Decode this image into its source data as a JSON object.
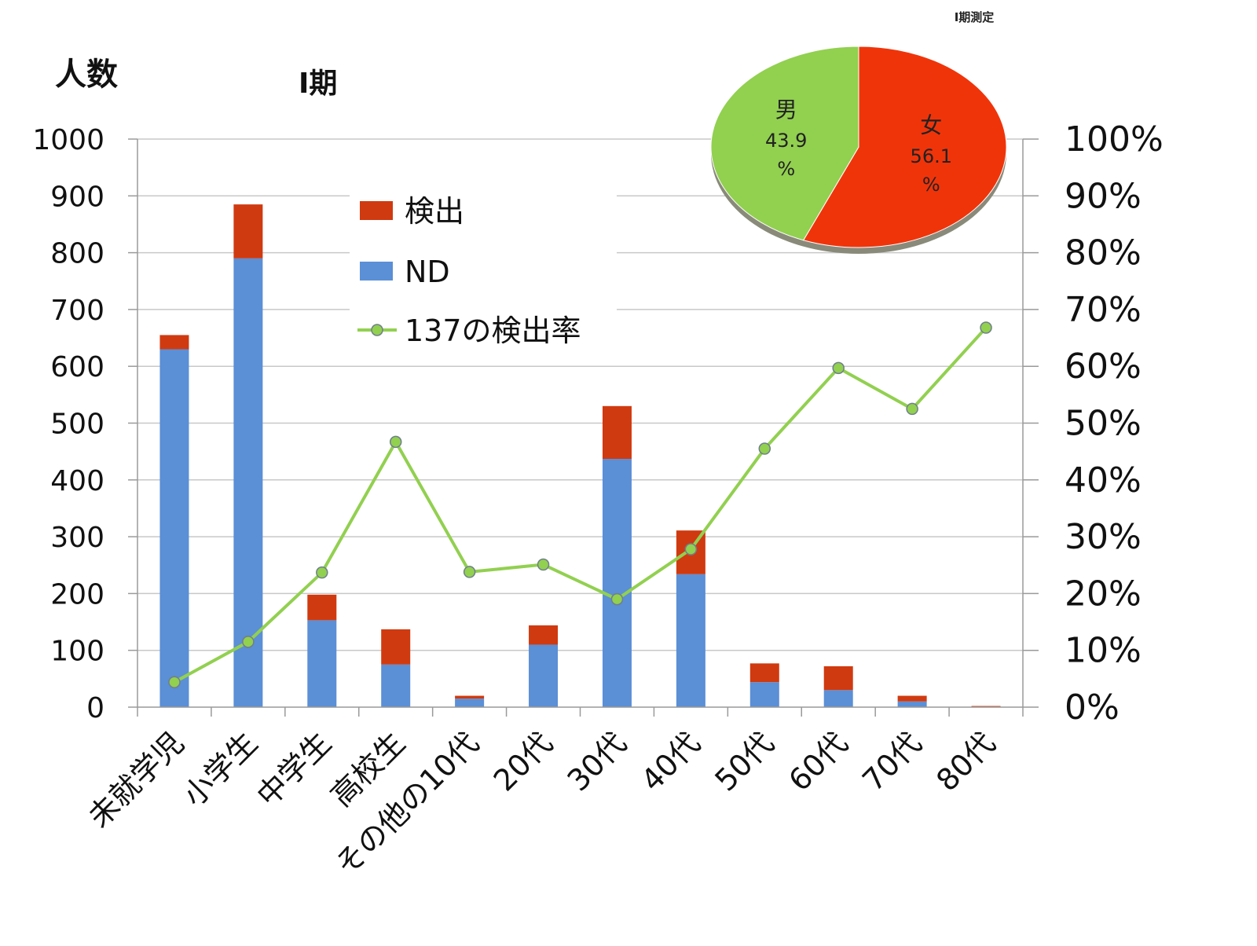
{
  "chart_data": [
    {
      "type": "bar",
      "subtitle": "Ⅰ期",
      "ylabel_left": "人数",
      "categories": [
        "未就学児",
        "小学生",
        "中学生",
        "高校生",
        "その他の10代",
        "20代",
        "30代",
        "40代",
        "50代",
        "60代",
        "70代",
        "80代"
      ],
      "stacked": true,
      "series": [
        {
          "name": "ND",
          "color": "#5b8fd6",
          "values": [
            630,
            790,
            153,
            75,
            15,
            110,
            437,
            234,
            44,
            30,
            10,
            0
          ]
        },
        {
          "name": "検出",
          "color": "#d03a10",
          "values": [
            25,
            95,
            45,
            62,
            5,
            34,
            93,
            77,
            33,
            42,
            10,
            2
          ]
        }
      ],
      "line_series": {
        "name": "137の検出率",
        "color": "#92d050",
        "values": [
          0.044,
          0.115,
          0.237,
          0.467,
          0.238,
          0.251,
          0.19,
          0.278,
          0.455,
          0.597,
          0.525,
          0.668
        ]
      },
      "ylim_left": [
        0,
        1000
      ],
      "yticks_left": [
        "0",
        "100",
        "200",
        "300",
        "400",
        "500",
        "600",
        "700",
        "800",
        "900",
        "1000"
      ],
      "ylim_right": [
        0,
        1
      ],
      "yticks_right": [
        "0%",
        "10%",
        "20%",
        "30%",
        "40%",
        "50%",
        "60%",
        "70%",
        "80%",
        "90%",
        "100%"
      ],
      "grid": true,
      "legend": [
        {
          "label": "検出",
          "kind": "box",
          "color": "#d03a10"
        },
        {
          "label": "ND",
          "kind": "box",
          "color": "#5b8fd6"
        },
        {
          "label": "137の検出率",
          "kind": "line",
          "color": "#92d050"
        }
      ],
      "legend_position": "upper-center"
    },
    {
      "type": "pie",
      "title": "Ⅰ期測定",
      "slices": [
        {
          "label": "女",
          "value_text": "56.1",
          "unit": "%",
          "value": 56.1,
          "color": "#f0340a"
        },
        {
          "label": "男",
          "value_text": "43.9",
          "unit": "%",
          "value": 43.9,
          "color": "#92d050"
        }
      ]
    }
  ]
}
